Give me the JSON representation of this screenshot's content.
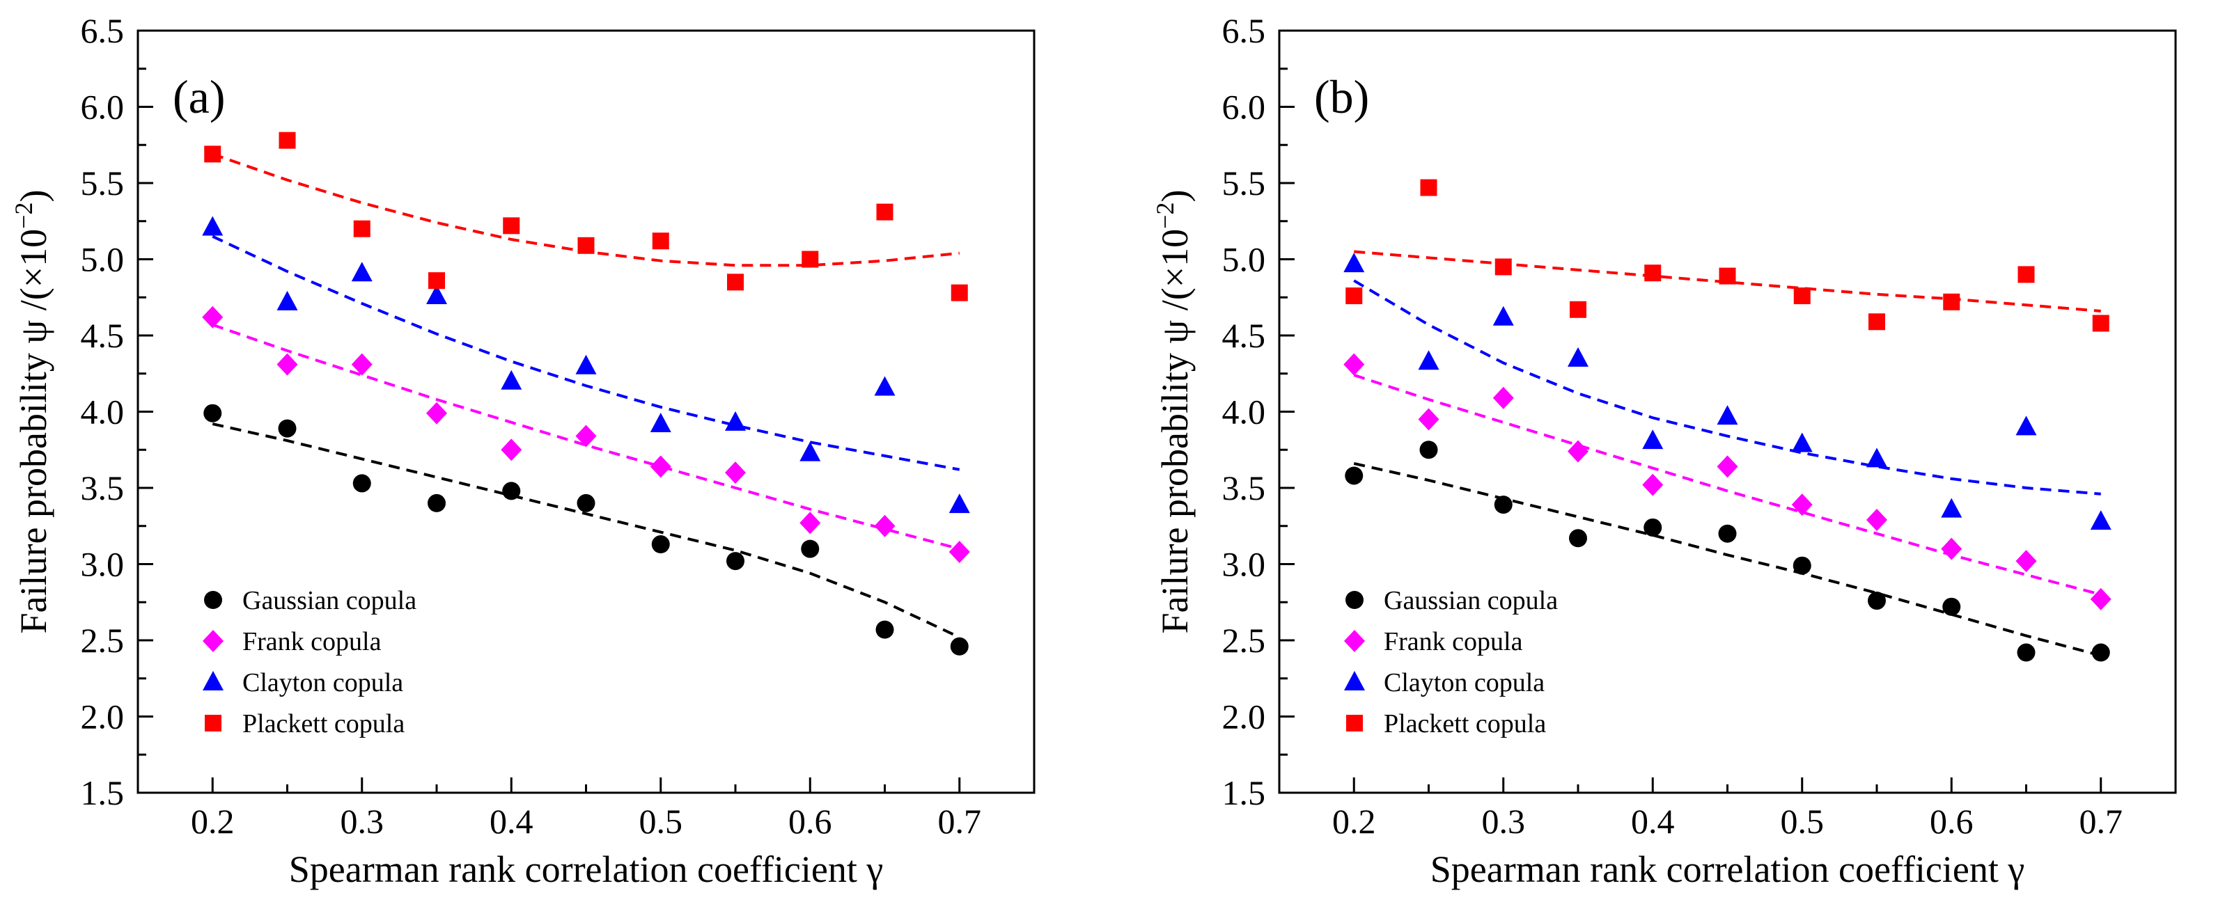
{
  "chart_data": [
    {
      "type": "scatter",
      "panel_label": "(a)",
      "xlabel": "Spearman rank correlation coefficient γ",
      "ylabel": "Failure probability ψ /(×10",
      "ylabel_sup": "−2",
      "ylabel_end": ")",
      "xlim": [
        0.15,
        0.75
      ],
      "ylim": [
        1.5,
        6.5
      ],
      "xticks": [
        0.2,
        0.3,
        0.4,
        0.5,
        0.6,
        0.7
      ],
      "xtick_labels": [
        "0.2",
        "0.3",
        "0.4",
        "0.5",
        "0.6",
        "0.7"
      ],
      "yticks": [
        1.5,
        2.0,
        2.5,
        3.0,
        3.5,
        4.0,
        4.5,
        5.0,
        5.5,
        6.0,
        6.5
      ],
      "ytick_labels": [
        "1.5",
        "2.0",
        "2.5",
        "3.0",
        "3.5",
        "4.0",
        "4.5",
        "5.0",
        "5.5",
        "6.0",
        "6.5"
      ],
      "legend_position": "bottom-left",
      "x": [
        0.2,
        0.25,
        0.3,
        0.35,
        0.4,
        0.45,
        0.5,
        0.55,
        0.6,
        0.65,
        0.7
      ],
      "series": [
        {
          "name": "Gaussian copula",
          "marker": "circle",
          "color": "#000000",
          "values": [
            3.99,
            3.89,
            3.53,
            3.4,
            3.48,
            3.4,
            3.13,
            3.02,
            3.1,
            2.57,
            2.46
          ],
          "fit": [
            3.92,
            3.81,
            3.69,
            3.57,
            3.45,
            3.33,
            3.21,
            3.09,
            2.94,
            2.75,
            2.52
          ]
        },
        {
          "name": "Frank copula",
          "marker": "diamond",
          "color": "#ff00ff",
          "values": [
            4.62,
            4.31,
            4.31,
            3.99,
            3.75,
            3.84,
            3.64,
            3.6,
            3.27,
            3.25,
            3.08
          ],
          "fit": [
            4.57,
            4.4,
            4.24,
            4.08,
            3.93,
            3.78,
            3.64,
            3.5,
            3.36,
            3.23,
            3.1
          ]
        },
        {
          "name": "Clayton copula",
          "marker": "triangle",
          "color": "#0000ff",
          "values": [
            5.21,
            4.72,
            4.91,
            4.76,
            4.2,
            4.3,
            3.92,
            3.93,
            3.73,
            4.16,
            3.39
          ],
          "fit": [
            5.15,
            4.92,
            4.71,
            4.51,
            4.33,
            4.17,
            4.03,
            3.91,
            3.8,
            3.71,
            3.62
          ]
        },
        {
          "name": "Plackett copula",
          "marker": "square",
          "color": "#ff0000",
          "values": [
            5.69,
            5.78,
            5.2,
            4.86,
            5.22,
            5.09,
            5.12,
            4.85,
            5.0,
            5.31,
            4.78
          ],
          "fit": [
            5.69,
            5.52,
            5.37,
            5.24,
            5.13,
            5.05,
            4.99,
            4.96,
            4.96,
            4.99,
            5.04
          ]
        }
      ]
    },
    {
      "type": "scatter",
      "panel_label": "(b)",
      "xlabel": "Spearman rank correlation coefficient γ",
      "ylabel": "Failure probability ψ /(×10",
      "ylabel_sup": "−2",
      "ylabel_end": ")",
      "xlim": [
        0.15,
        0.75
      ],
      "ylim": [
        1.5,
        6.5
      ],
      "xticks": [
        0.2,
        0.3,
        0.4,
        0.5,
        0.6,
        0.7
      ],
      "xtick_labels": [
        "0.2",
        "0.3",
        "0.4",
        "0.5",
        "0.6",
        "0.7"
      ],
      "yticks": [
        1.5,
        2.0,
        2.5,
        3.0,
        3.5,
        4.0,
        4.5,
        5.0,
        5.5,
        6.0,
        6.5
      ],
      "ytick_labels": [
        "1.5",
        "2.0",
        "2.5",
        "3.0",
        "3.5",
        "4.0",
        "4.5",
        "5.0",
        "5.5",
        "6.0",
        "6.5"
      ],
      "legend_position": "bottom-left",
      "x": [
        0.2,
        0.25,
        0.3,
        0.35,
        0.4,
        0.45,
        0.5,
        0.55,
        0.6,
        0.65,
        0.7
      ],
      "series": [
        {
          "name": "Gaussian copula",
          "marker": "circle",
          "color": "#000000",
          "values": [
            3.58,
            3.75,
            3.39,
            3.17,
            3.24,
            3.2,
            2.99,
            2.76,
            2.72,
            2.42,
            2.42
          ],
          "fit": [
            3.66,
            3.55,
            3.43,
            3.31,
            3.19,
            3.06,
            2.94,
            2.81,
            2.67,
            2.53,
            2.4
          ]
        },
        {
          "name": "Frank copula",
          "marker": "diamond",
          "color": "#ff00ff",
          "values": [
            4.31,
            3.95,
            4.09,
            3.74,
            3.52,
            3.64,
            3.39,
            3.29,
            3.1,
            3.02,
            2.77
          ],
          "fit": [
            4.24,
            4.08,
            3.93,
            3.78,
            3.63,
            3.48,
            3.34,
            3.2,
            3.06,
            2.93,
            2.8
          ]
        },
        {
          "name": "Clayton copula",
          "marker": "triangle",
          "color": "#0000ff",
          "values": [
            4.97,
            4.33,
            4.62,
            4.35,
            3.81,
            3.97,
            3.79,
            3.69,
            3.36,
            3.9,
            3.28
          ],
          "fit": [
            4.86,
            4.57,
            4.32,
            4.12,
            3.96,
            3.84,
            3.73,
            3.64,
            3.56,
            3.5,
            3.46
          ]
        },
        {
          "name": "Plackett copula",
          "marker": "square",
          "color": "#ff0000",
          "values": [
            4.76,
            5.47,
            4.95,
            4.67,
            4.91,
            4.89,
            4.76,
            4.59,
            4.72,
            4.9,
            4.58
          ],
          "fit": [
            5.05,
            5.01,
            4.97,
            4.93,
            4.89,
            4.85,
            4.81,
            4.77,
            4.74,
            4.7,
            4.66
          ]
        }
      ]
    }
  ]
}
